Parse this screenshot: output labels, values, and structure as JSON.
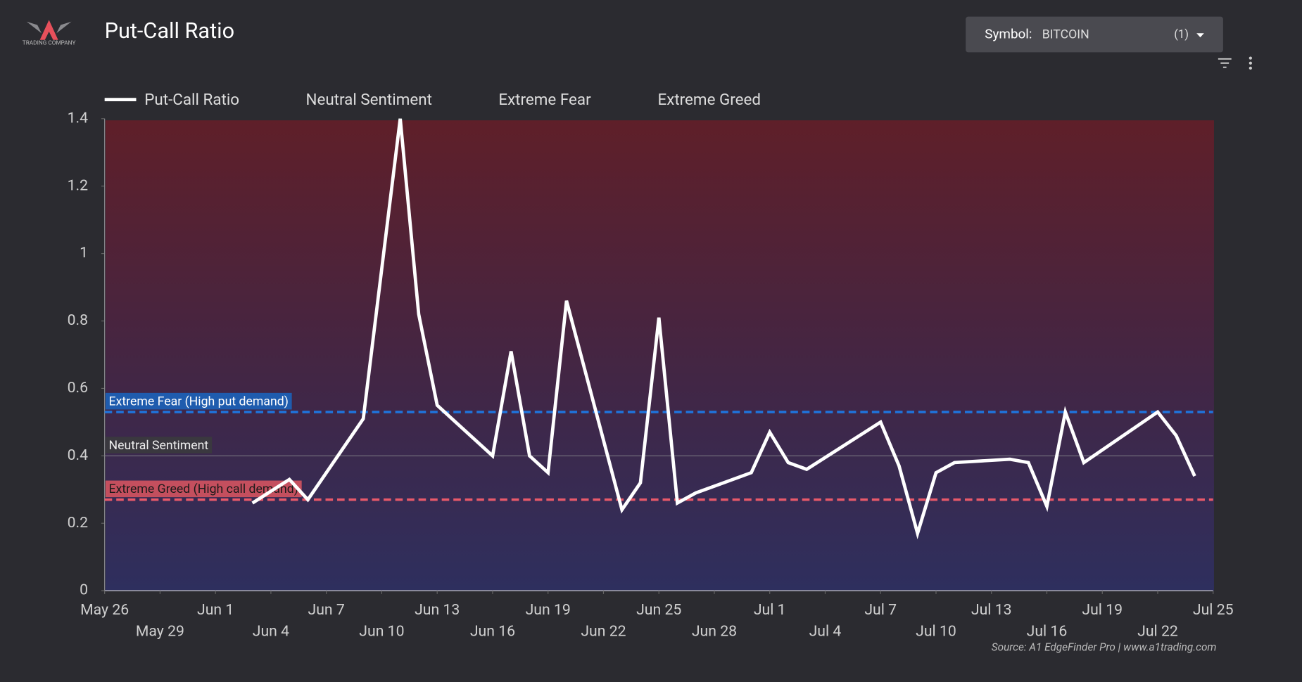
{
  "header": {
    "logo_text": "TRADING COMPANY",
    "title": "Put-Call Ratio",
    "symbol_label": "Symbol:",
    "symbol_value": "BITCOIN",
    "symbol_count": "(1)"
  },
  "chart_data": {
    "type": "line",
    "x": [
      "Jun 3",
      "Jun 5",
      "Jun 6",
      "Jun 9",
      "Jun 11",
      "Jun 12",
      "Jun 13",
      "Jun 16",
      "Jun 17",
      "Jun 18",
      "Jun 19",
      "Jun 20",
      "Jun 23",
      "Jun 24",
      "Jun 25",
      "Jun 26",
      "Jun 27",
      "Jun 30",
      "Jul 1",
      "Jul 2",
      "Jul 3",
      "Jul 7",
      "Jul 8",
      "Jul 9",
      "Jul 10",
      "Jul 11",
      "Jul 14",
      "Jul 15",
      "Jul 16",
      "Jul 17",
      "Jul 18",
      "Jul 22",
      "Jul 23",
      "Jul 24"
    ],
    "series": [
      {
        "name": "Put-Call Ratio",
        "color": "#ffffff",
        "values": [
          0.26,
          0.33,
          0.27,
          0.51,
          1.4,
          0.82,
          0.55,
          0.4,
          0.71,
          0.4,
          0.35,
          0.86,
          0.24,
          0.32,
          0.81,
          0.26,
          0.29,
          0.35,
          0.47,
          0.38,
          0.36,
          0.5,
          0.37,
          0.17,
          0.35,
          0.38,
          0.39,
          0.38,
          0.25,
          0.53,
          0.38,
          0.53,
          0.46,
          0.34
        ]
      }
    ],
    "reference_lines": [
      {
        "name": "Neutral Sentiment",
        "label": "Neutral Sentiment",
        "value": 0.4,
        "color": "#77737f",
        "label_bg": "#3a383f",
        "dashed": false
      },
      {
        "name": "Extreme Fear",
        "label": "Extreme Fear (High put demand)",
        "value": 0.53,
        "color": "#1f74dc",
        "label_bg": "#1f5cae",
        "dashed": true
      },
      {
        "name": "Extreme Greed",
        "label": "Extreme Greed (High call demand)",
        "value": 0.27,
        "color": "#e85a6a",
        "label_bg": "#c44f5e",
        "dashed": true
      }
    ],
    "xlim": [
      "May 26",
      "Jul 25"
    ],
    "xticks": [
      "May 26",
      "May 29",
      "Jun 1",
      "Jun 4",
      "Jun 7",
      "Jun 10",
      "Jun 13",
      "Jun 16",
      "Jun 19",
      "Jun 22",
      "Jun 25",
      "Jun 28",
      "Jul 1",
      "Jul 4",
      "Jul 7",
      "Jul 10",
      "Jul 13",
      "Jul 16",
      "Jul 19",
      "Jul 22",
      "Jul 25"
    ],
    "ylim": [
      0,
      1.4
    ],
    "yticks": [
      0,
      0.2,
      0.4,
      0.6,
      0.8,
      1,
      1.2,
      1.4
    ],
    "source": "Source: A1 EdgeFinder Pro | www.a1trading.com"
  }
}
